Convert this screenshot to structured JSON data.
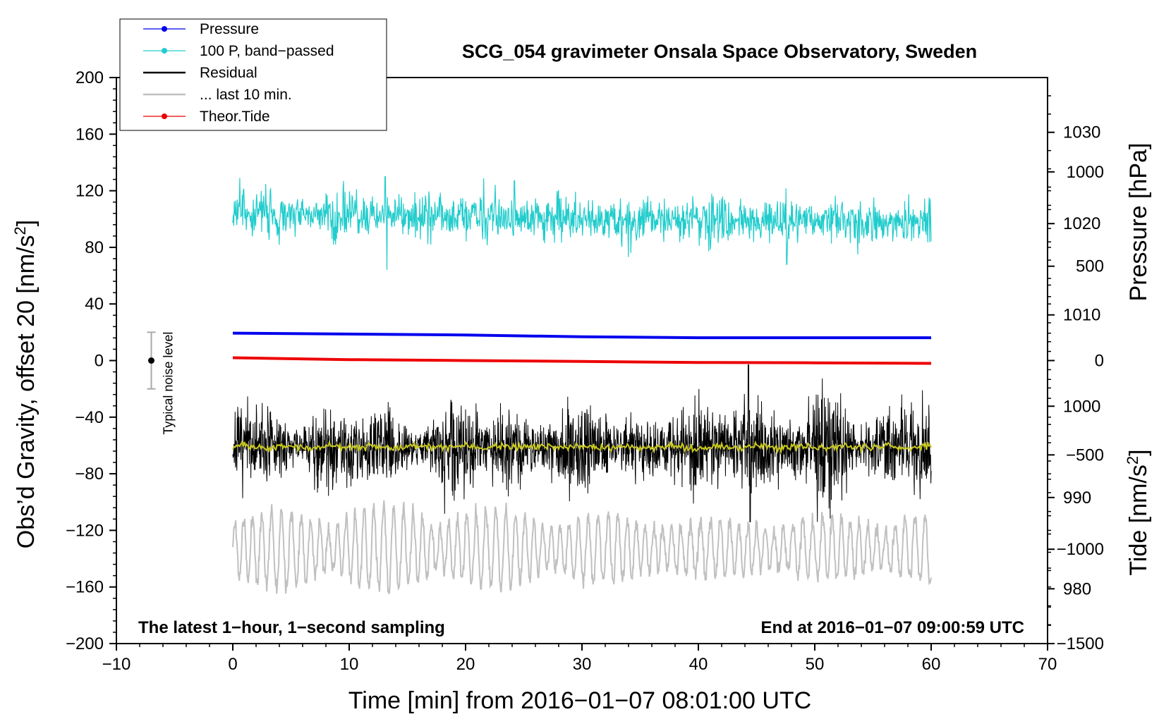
{
  "chart_data": {
    "type": "line",
    "title": "SCG_054 gravimeter Onsala Space Observatory, Sweden",
    "xlabel": "Time [min] from 2016−01−07 08:01:00 UTC",
    "ylabel_left": "Obs’d Gravity, offset 20 [nm/s",
    "ylabel_left_sup": "2",
    "ylabel_left_close": "]",
    "ylabel_right_pressure": "Pressure [hPa]",
    "ylabel_right_tide": "Tide [nm/s",
    "ylabel_right_tide_sup": "2",
    "ylabel_right_tide_close": "]",
    "xlim": [
      -10,
      70
    ],
    "ylim_left": [
      -200,
      200
    ],
    "ylim_pressure": [
      974,
      1036
    ],
    "ylim_tide": [
      -1500,
      1500
    ],
    "x_ticks": [
      -10,
      0,
      10,
      20,
      30,
      40,
      50,
      60,
      70
    ],
    "x_tick_labels": [
      "−10",
      "0",
      "10",
      "20",
      "30",
      "40",
      "50",
      "60",
      "70"
    ],
    "y_left_ticks": [
      200,
      160,
      120,
      80,
      40,
      0,
      -40,
      -80,
      -120,
      -160,
      -200
    ],
    "y_left_tick_labels": [
      "200",
      "160",
      "120",
      "80",
      "40",
      "0",
      "−40",
      "−80",
      "−120",
      "−160",
      "−200"
    ],
    "y_pressure_ticks": [
      1030,
      1020,
      1010,
      1000,
      990,
      980
    ],
    "y_pressure_tick_labels": [
      "1030",
      "1020",
      "1010",
      "1000",
      "990",
      "980"
    ],
    "y_tide_ticks": [
      1000,
      500,
      0,
      -500,
      -1000,
      -1500
    ],
    "y_tide_tick_labels": [
      "1000",
      "500",
      "0",
      "−500",
      "−1000",
      "−1500"
    ],
    "note_left": "The latest 1−hour, 1−second sampling",
    "note_right": "End at 2016−01−07 09:00:59 UTC",
    "noise_label": "Typical noise level",
    "noise_bar": {
      "x": -7,
      "center": 0,
      "low": -20,
      "high": 20
    },
    "legend": [
      {
        "label": "Pressure",
        "color": "#0000ee",
        "marker": true
      },
      {
        "label": "100 P, band−passed",
        "color": "#22cccc",
        "marker": true
      },
      {
        "label": "Residual",
        "color": "#000000",
        "marker": false
      },
      {
        "label": "... last 10 min.",
        "color": "#c0c0c0",
        "marker": false
      },
      {
        "label": "Theor.Tide",
        "color": "#ee0000",
        "marker": true
      }
    ],
    "series": [
      {
        "name": "Pressure",
        "axis": "pressure",
        "color": "#0000ee",
        "x": [
          0,
          10,
          20,
          30,
          40,
          50,
          60
        ],
        "y": [
          1008.0,
          1007.9,
          1007.8,
          1007.6,
          1007.5,
          1007.5,
          1007.5
        ]
      },
      {
        "name": "100 P, band−passed",
        "axis": "left",
        "color": "#22cccc",
        "x_start": 0,
        "x_end": 60,
        "baseline_start": 104,
        "baseline_end": 97,
        "amplitude": 9,
        "min": 64,
        "max": 130
      },
      {
        "name": "Residual",
        "axis": "left",
        "color": "#000000",
        "x_start": 0,
        "x_end": 60,
        "baseline": -61,
        "amplitude": 16,
        "min": -114,
        "max": -3
      },
      {
        "name": "smoothed residual",
        "axis": "left",
        "color": "#c8c820",
        "x_start": 0,
        "x_end": 60,
        "baseline": -61
      },
      {
        "name": "... last 10 min.",
        "axis": "left",
        "color": "#c0c0c0",
        "x_start": 0,
        "x_end": 60,
        "baseline": -133,
        "amplitude": 30
      },
      {
        "name": "Theor.Tide",
        "axis": "tide",
        "color": "#ee0000",
        "x": [
          0,
          10,
          20,
          30,
          40,
          50,
          60
        ],
        "y": [
          15,
          5,
          0,
          -5,
          -10,
          -12,
          -15
        ]
      }
    ]
  }
}
